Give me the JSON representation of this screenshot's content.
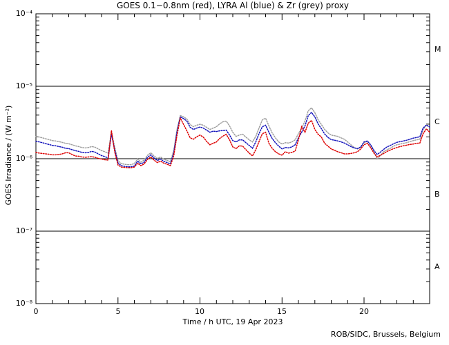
{
  "title": "GOES 0.1−0.8nm (red), LYRA Al (blue) & Zr (grey) proxy",
  "credit": "ROB/SIDC, Brussels, Belgium",
  "chart_data": {
    "type": "line",
    "title": "GOES 0.1−0.8nm (red), LYRA Al (blue) & Zr (grey) proxy",
    "xlabel": "Time / h UTC, 19 Apr 2023",
    "ylabel": "GOES Irradiance / (W m⁻²)",
    "x_range_hours": [
      0,
      24
    ],
    "y_scale": "log10",
    "y_range_log10": [
      -8,
      -4
    ],
    "x_ticks_major": [
      0,
      5,
      10,
      15,
      20
    ],
    "x_tick_labels": [
      "0",
      "5",
      "10",
      "15",
      "20"
    ],
    "x_minor_step": 1,
    "y_ticks_log10": [
      -4,
      -5,
      -6,
      -7,
      -8
    ],
    "y_tick_labels": [
      "10⁻⁴",
      "10⁻⁵",
      "10⁻⁶",
      "10⁻⁷",
      "10⁻⁸"
    ],
    "hlines_log10": [
      -5,
      -6,
      -7
    ],
    "grid": false,
    "legend_position": "in-title",
    "flare_classes": [
      {
        "label": "M",
        "log10_center": -4.5
      },
      {
        "label": "C",
        "log10_center": -5.5
      },
      {
        "label": "B",
        "log10_center": -6.5
      },
      {
        "label": "A",
        "log10_center": -7.5
      }
    ],
    "frame_color": "#000000",
    "background_color": "#ffffff",
    "x_hours": [
      0,
      0.2,
      0.4,
      0.6,
      0.8,
      1,
      1.2,
      1.4,
      1.6,
      1.8,
      2,
      2.2,
      2.4,
      2.6,
      2.8,
      3,
      3.2,
      3.4,
      3.6,
      3.8,
      4,
      4.2,
      4.4,
      4.6,
      4.8,
      5,
      5.2,
      5.4,
      5.6,
      5.8,
      6,
      6.2,
      6.4,
      6.6,
      6.8,
      7,
      7.2,
      7.4,
      7.6,
      7.8,
      8,
      8.2,
      8.4,
      8.6,
      8.8,
      9,
      9.2,
      9.4,
      9.6,
      9.8,
      10,
      10.2,
      10.4,
      10.6,
      10.8,
      11,
      11.2,
      11.4,
      11.6,
      11.8,
      12,
      12.2,
      12.4,
      12.6,
      12.8,
      13,
      13.2,
      13.4,
      13.6,
      13.8,
      14,
      14.2,
      14.4,
      14.6,
      14.8,
      15,
      15.2,
      15.4,
      15.6,
      15.8,
      16,
      16.2,
      16.4,
      16.6,
      16.8,
      17,
      17.2,
      17.4,
      17.6,
      17.8,
      18,
      18.2,
      18.4,
      18.6,
      18.8,
      19,
      19.2,
      19.4,
      19.6,
      19.8,
      20,
      20.2,
      20.4,
      20.6,
      20.8,
      21,
      21.2,
      21.4,
      21.6,
      21.8,
      22,
      22.2,
      22.4,
      22.6,
      22.8,
      23,
      23.2,
      23.4,
      23.6,
      23.8,
      24
    ],
    "series": [
      {
        "name": "LYRA Zr proxy",
        "color_name": "grey",
        "color": "#9e9e9e",
        "log10_values": [
          -5.692,
          -5.702,
          -5.712,
          -5.726,
          -5.736,
          -5.75,
          -5.755,
          -5.764,
          -5.774,
          -5.788,
          -5.793,
          -5.808,
          -5.822,
          -5.832,
          -5.846,
          -5.851,
          -5.846,
          -5.832,
          -5.841,
          -5.865,
          -5.889,
          -5.904,
          -5.923,
          -5.625,
          -5.837,
          -6.029,
          -6.067,
          -6.077,
          -6.082,
          -6.082,
          -6.067,
          -6.005,
          -6.048,
          -6.019,
          -5.952,
          -5.918,
          -5.962,
          -5.995,
          -5.976,
          -6.01,
          -6.024,
          -6.043,
          -5.885,
          -5.596,
          -5.404,
          -5.423,
          -5.452,
          -5.529,
          -5.558,
          -5.538,
          -5.524,
          -5.538,
          -5.567,
          -5.596,
          -5.577,
          -5.558,
          -5.519,
          -5.49,
          -5.481,
          -5.548,
          -5.635,
          -5.692,
          -5.673,
          -5.663,
          -5.702,
          -5.74,
          -5.769,
          -5.692,
          -5.577,
          -5.462,
          -5.442,
          -5.548,
          -5.644,
          -5.712,
          -5.769,
          -5.798,
          -5.779,
          -5.784,
          -5.769,
          -5.74,
          -5.654,
          -5.577,
          -5.481,
          -5.337,
          -5.298,
          -5.365,
          -5.462,
          -5.529,
          -5.596,
          -5.644,
          -5.673,
          -5.683,
          -5.692,
          -5.712,
          -5.731,
          -5.769,
          -5.808,
          -5.846,
          -5.865,
          -5.846,
          -5.779,
          -5.76,
          -5.817,
          -5.904,
          -6.005,
          -5.957,
          -5.904,
          -5.875,
          -5.856,
          -5.827,
          -5.808,
          -5.798,
          -5.788,
          -5.779,
          -5.764,
          -5.75,
          -5.74,
          -5.731,
          -5.596,
          -5.538,
          -5.567
        ]
      },
      {
        "name": "LYRA Al proxy",
        "color_name": "blue",
        "color": "#1111bb",
        "log10_values": [
          -5.76,
          -5.769,
          -5.779,
          -5.793,
          -5.803,
          -5.817,
          -5.822,
          -5.832,
          -5.841,
          -5.856,
          -5.861,
          -5.875,
          -5.889,
          -5.899,
          -5.913,
          -5.918,
          -5.913,
          -5.899,
          -5.909,
          -5.933,
          -5.957,
          -5.971,
          -5.99,
          -5.663,
          -5.875,
          -6.058,
          -6.096,
          -6.106,
          -6.111,
          -6.111,
          -6.101,
          -6.034,
          -6.072,
          -6.048,
          -5.981,
          -5.947,
          -5.99,
          -6.024,
          -6.005,
          -6.038,
          -6.053,
          -6.072,
          -5.923,
          -5.625,
          -5.423,
          -5.447,
          -5.481,
          -5.567,
          -5.596,
          -5.577,
          -5.563,
          -5.577,
          -5.606,
          -5.635,
          -5.62,
          -5.625,
          -5.615,
          -5.611,
          -5.606,
          -5.673,
          -5.75,
          -5.769,
          -5.74,
          -5.74,
          -5.779,
          -5.817,
          -5.856,
          -5.769,
          -5.654,
          -5.558,
          -5.538,
          -5.635,
          -5.721,
          -5.779,
          -5.827,
          -5.865,
          -5.846,
          -5.851,
          -5.837,
          -5.808,
          -5.712,
          -5.635,
          -5.548,
          -5.404,
          -5.361,
          -5.423,
          -5.519,
          -5.587,
          -5.659,
          -5.707,
          -5.736,
          -5.745,
          -5.755,
          -5.769,
          -5.784,
          -5.808,
          -5.832,
          -5.851,
          -5.861,
          -5.837,
          -5.769,
          -5.755,
          -5.808,
          -5.885,
          -5.942,
          -5.909,
          -5.87,
          -5.837,
          -5.817,
          -5.793,
          -5.774,
          -5.764,
          -5.755,
          -5.745,
          -5.731,
          -5.716,
          -5.707,
          -5.697,
          -5.577,
          -5.534,
          -5.563
        ]
      },
      {
        "name": "GOES 0.1−0.8nm",
        "color_name": "red",
        "color": "#dd0000",
        "log10_values": [
          -5.913,
          -5.923,
          -5.928,
          -5.933,
          -5.938,
          -5.947,
          -5.947,
          -5.942,
          -5.933,
          -5.918,
          -5.918,
          -5.942,
          -5.962,
          -5.966,
          -5.976,
          -5.981,
          -5.976,
          -5.971,
          -5.981,
          -5.995,
          -6.005,
          -6.014,
          -6.019,
          -5.611,
          -5.904,
          -6.087,
          -6.115,
          -6.12,
          -6.125,
          -6.125,
          -6.115,
          -6.063,
          -6.096,
          -6.072,
          -6.01,
          -5.976,
          -6.019,
          -6.053,
          -6.034,
          -6.063,
          -6.077,
          -6.096,
          -5.962,
          -5.673,
          -5.438,
          -5.529,
          -5.615,
          -5.712,
          -5.731,
          -5.697,
          -5.673,
          -5.702,
          -5.76,
          -5.808,
          -5.788,
          -5.769,
          -5.721,
          -5.688,
          -5.663,
          -5.74,
          -5.837,
          -5.861,
          -5.822,
          -5.827,
          -5.875,
          -5.923,
          -5.962,
          -5.875,
          -5.764,
          -5.654,
          -5.635,
          -5.788,
          -5.856,
          -5.904,
          -5.933,
          -5.952,
          -5.904,
          -5.923,
          -5.913,
          -5.894,
          -5.74,
          -5.558,
          -5.635,
          -5.51,
          -5.471,
          -5.596,
          -5.663,
          -5.702,
          -5.788,
          -5.827,
          -5.865,
          -5.885,
          -5.904,
          -5.918,
          -5.933,
          -5.933,
          -5.928,
          -5.918,
          -5.904,
          -5.865,
          -5.808,
          -5.788,
          -5.846,
          -5.923,
          -5.976,
          -5.952,
          -5.928,
          -5.899,
          -5.88,
          -5.861,
          -5.846,
          -5.832,
          -5.822,
          -5.813,
          -5.803,
          -5.798,
          -5.788,
          -5.784,
          -5.654,
          -5.587,
          -5.635
        ]
      }
    ]
  }
}
